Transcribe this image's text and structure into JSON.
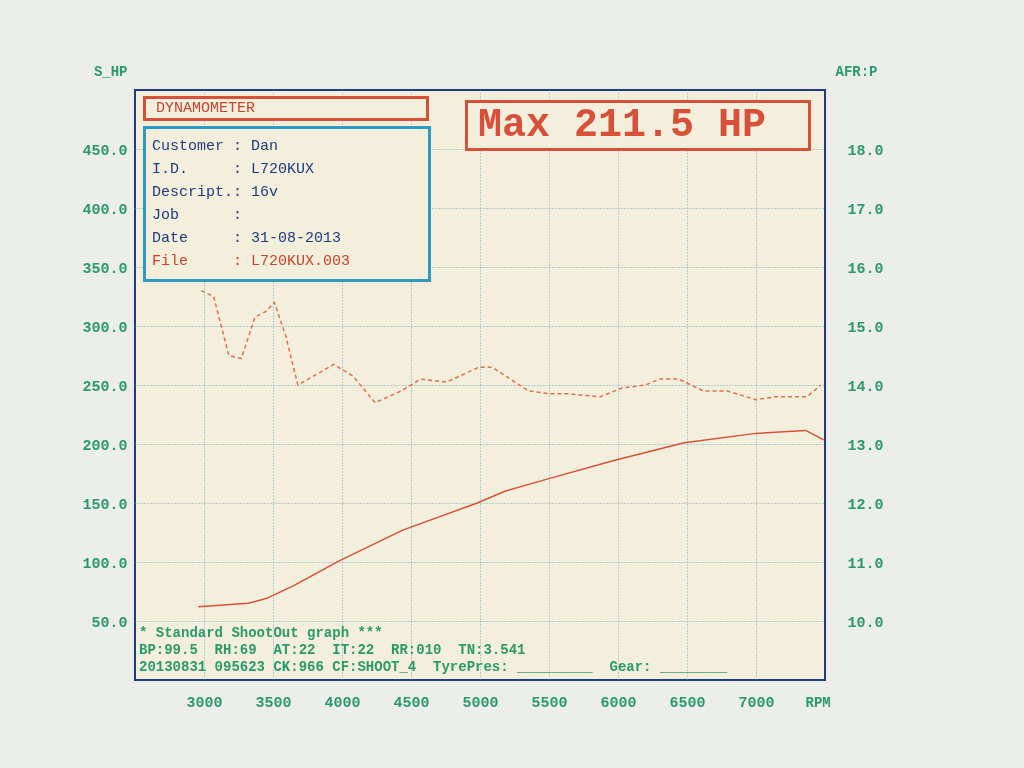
{
  "chart_data": {
    "type": "line",
    "title": "DYNAMOMETER",
    "xlabel": "RPM",
    "ylabel": "S_HP",
    "y2label": "AFR:P",
    "xlim": [
      2500,
      7500
    ],
    "xticks": [
      3000,
      3500,
      4000,
      4500,
      5000,
      5500,
      6000,
      6500,
      7000
    ],
    "ylim": [
      0,
      500
    ],
    "yticks": [
      {
        "value": 50,
        "label": "50.0"
      },
      {
        "value": 100,
        "label": "100.0"
      },
      {
        "value": 150,
        "label": "150.0"
      },
      {
        "value": 200,
        "label": "200.0"
      },
      {
        "value": 250,
        "label": "250.0"
      },
      {
        "value": 300,
        "label": "300.0"
      },
      {
        "value": 350,
        "label": "350.0"
      },
      {
        "value": 400,
        "label": "400.0"
      },
      {
        "value": 450,
        "label": "450.0"
      }
    ],
    "y2lim": [
      9,
      19
    ],
    "y2ticks": [
      {
        "value": 10,
        "label": "10.0"
      },
      {
        "value": 11,
        "label": "11.0"
      },
      {
        "value": 12,
        "label": "12.0"
      },
      {
        "value": 13,
        "label": "13.0"
      },
      {
        "value": 14,
        "label": "14.0"
      },
      {
        "value": 15,
        "label": "15.0"
      },
      {
        "value": 16,
        "label": "16.0"
      },
      {
        "value": 17,
        "label": "17.0"
      },
      {
        "value": 18,
        "label": "18.0"
      }
    ],
    "grid": true,
    "series": [
      {
        "color": "#d8503a",
        "line_style": "solid",
        "x": [
          2960,
          3320,
          3450,
          3650,
          3980,
          4440,
          4980,
          5180,
          5480,
          5970,
          6480,
          7000,
          7360,
          7490
        ],
        "values": [
          62,
          65,
          69,
          80,
          101,
          127,
          150,
          160,
          170,
          186,
          201,
          209,
          211.5,
          203.5
        ]
      },
      {
        "color": "#e0704e",
        "line_style": "dashed",
        "axis": "y2",
        "x": [
          2980,
          3070,
          3180,
          3270,
          3370,
          3450,
          3510,
          3590,
          3680,
          3940,
          4080,
          4240,
          4430,
          4570,
          4760,
          4990,
          5090,
          5350,
          5510,
          5640,
          5870,
          6030,
          6200,
          6300,
          6440,
          6620,
          6790,
          7000,
          7140,
          7370,
          7470
        ],
        "values": [
          15.6,
          15.5,
          14.5,
          14.45,
          15.15,
          15.25,
          15.4,
          14.85,
          14.0,
          14.35,
          14.15,
          13.7,
          13.9,
          14.1,
          14.05,
          14.3,
          14.3,
          13.9,
          13.85,
          13.85,
          13.8,
          13.95,
          14.0,
          14.1,
          14.1,
          13.9,
          13.9,
          13.75,
          13.8,
          13.8,
          14.0
        ]
      }
    ],
    "annotations": [
      "Customer : Dan",
      "I.D.     : L720KUX",
      "Descript.: 16v",
      "Job      :",
      "Date     : 31-08-2013",
      "File     : L720KUX.003",
      "Max 211.5 HP",
      "* Standard ShootOut graph ***",
      "BP:99.5  RH:69  AT:22  IT:22  RR:010  TN:3.541",
      "20130831 095623 CK:966 CF:SHOOT_4  TyrePres: _________  Gear: ________"
    ]
  }
}
